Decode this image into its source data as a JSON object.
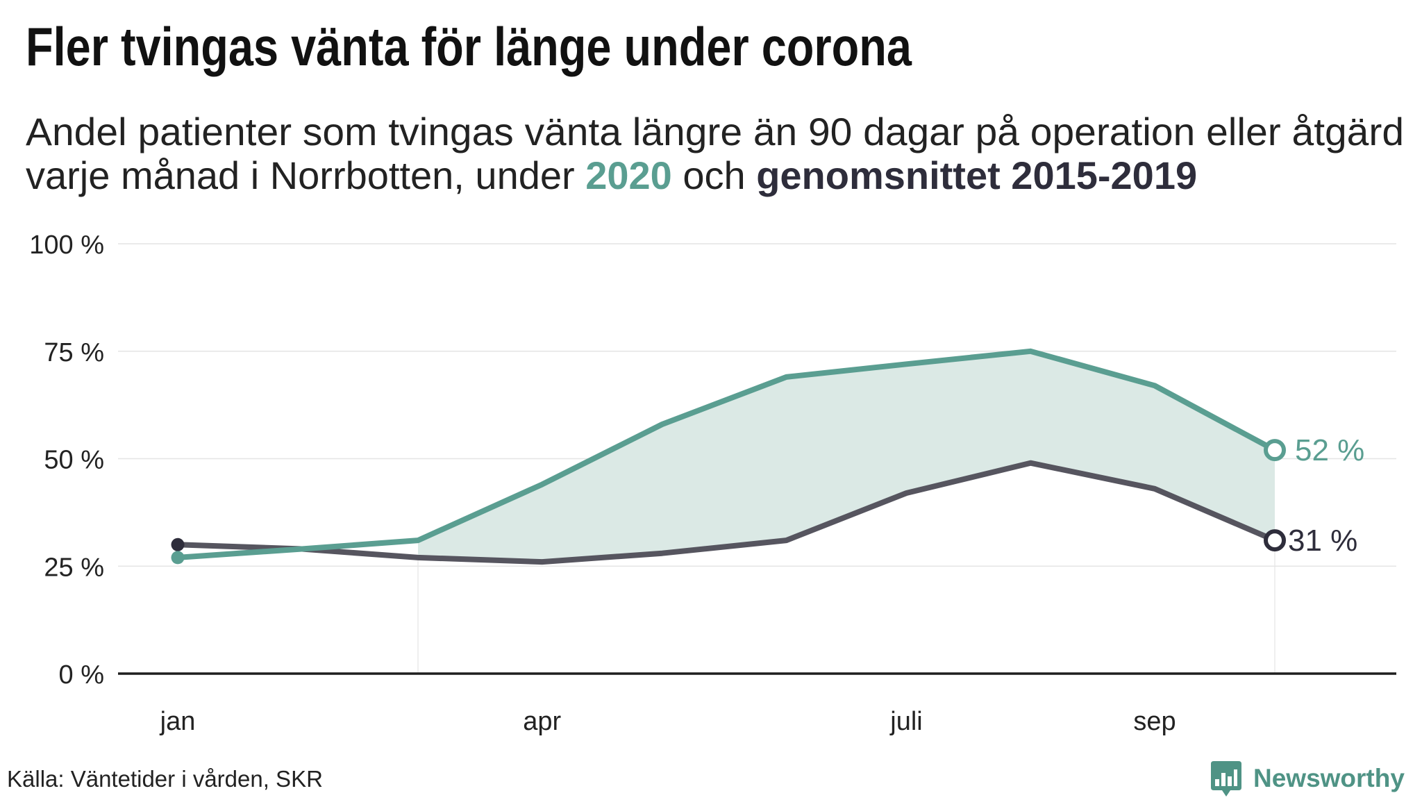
{
  "chart_data": {
    "type": "line",
    "title": "Fler tvingas vänta för länge under corona",
    "subtitle": {
      "line1": "Andel patienter som tvingas vänta längre än 90 dagar på operation eller åtgärd",
      "line2_before": "varje månad i Norrbotten, under ",
      "line2_between": " och "
    },
    "x": [
      "2020-01",
      "2020-02",
      "2020-03",
      "2020-04",
      "2020-05",
      "2020-06",
      "2020-07",
      "2020-08",
      "2020-09",
      "2020-10"
    ],
    "x_ticks": [
      {
        "value": "2020-01",
        "label": "jan"
      },
      {
        "value": "2020-04",
        "label": "apr"
      },
      {
        "value": "2020-07",
        "label": "juli"
      },
      {
        "value": "2020-09",
        "label": "sep"
      }
    ],
    "y_ticks": [
      {
        "value": 0,
        "label": "0 %"
      },
      {
        "value": 25,
        "label": "25 %"
      },
      {
        "value": 50,
        "label": "50 %"
      },
      {
        "value": 75,
        "label": "75 %"
      },
      {
        "value": 100,
        "label": "100 %"
      }
    ],
    "ylim": [
      0,
      100
    ],
    "xlabel": "",
    "ylabel": "",
    "series": [
      {
        "name": "2020",
        "values": [
          27,
          29,
          31,
          44,
          58,
          69,
          72,
          75,
          67,
          52
        ],
        "color": "#5a9e91",
        "label_color": "#5a9e91",
        "end_label": "52 %"
      },
      {
        "name": "genomsnittet 2015-2019",
        "values": [
          30,
          29,
          27,
          26,
          28,
          31,
          42,
          49,
          43,
          31
        ],
        "color": "#56555f",
        "label_color": "#2e2d3b",
        "end_label": "31 %"
      }
    ],
    "area_between": {
      "from": "2020-03",
      "to": "2020-10",
      "color": "#dbe9e5"
    },
    "grid": true,
    "legend": "none"
  },
  "source": "Källa: Väntetider i vården, SKR",
  "logo": {
    "text": "Newsworthy",
    "icon": "newsworthy-chart-bubble-icon",
    "color": "#4f9385"
  },
  "colors": {
    "title": "#111111",
    "text": "#222222",
    "grid": "#e4e4e4",
    "axis": "#1f1f1f",
    "background": "#ffffff"
  }
}
